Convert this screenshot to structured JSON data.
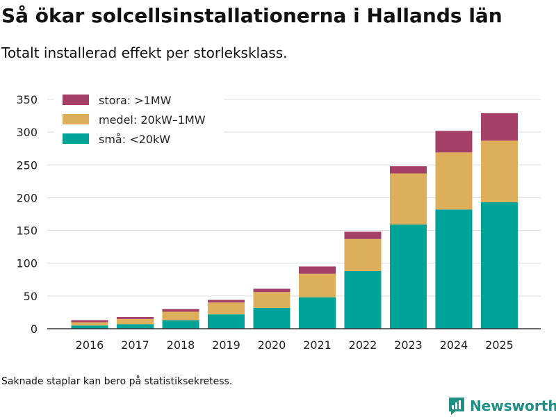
{
  "header": {
    "title": "Så ökar solcellsinstallationerna i Hallands län",
    "subtitle": "Totalt installerad effekt per storleksklass."
  },
  "footnote": "Saknade staplar kan bero på statistiksekretess.",
  "brand": {
    "name": "Newsworthy",
    "color": "#1f8f86"
  },
  "chart_data": {
    "type": "bar",
    "stacked": true,
    "categories": [
      "2016",
      "2017",
      "2018",
      "2019",
      "2020",
      "2021",
      "2022",
      "2023",
      "2024",
      "2025"
    ],
    "series": [
      {
        "name": "små: <20kW",
        "color": "#00a398",
        "values": [
          5,
          7,
          13,
          22,
          32,
          48,
          88,
          159,
          182,
          193
        ]
      },
      {
        "name": "medel: 20kW–1MW",
        "color": "#ddaf5a",
        "values": [
          5,
          8,
          13,
          18,
          24,
          36,
          49,
          78,
          87,
          94
        ]
      },
      {
        "name": "stora: >1MW",
        "color": "#a43f68",
        "values": [
          3,
          3,
          4,
          4,
          5,
          11,
          11,
          11,
          33,
          42
        ]
      }
    ],
    "ylim": [
      0,
      350
    ],
    "yticks": [
      0,
      50,
      100,
      150,
      200,
      250,
      300,
      350
    ],
    "grid": true,
    "legend": "top-left"
  }
}
